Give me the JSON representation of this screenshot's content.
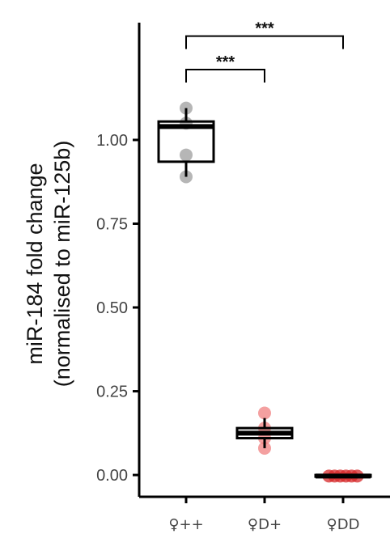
{
  "chart_data": {
    "type": "box",
    "ylabel_line1": "miR-184  fold  change",
    "ylabel_line2": "(normalised  to  miR-125b)",
    "yticks": [
      0.0,
      0.25,
      0.5,
      0.75,
      1.0
    ],
    "ytick_labels": [
      "0.00",
      "0.25",
      "0.50",
      "0.75",
      "1.00"
    ],
    "ylim": [
      -0.065,
      1.35
    ],
    "categories": [
      "♀++",
      "♀D+",
      "♀DD"
    ],
    "boxes": [
      {
        "q1": 0.935,
        "median": 1.04,
        "q3": 1.055,
        "whisker_low": 0.89,
        "whisker_high": 1.095
      },
      {
        "q1": 0.11,
        "median": 0.125,
        "q3": 0.14,
        "whisker_low": 0.08,
        "whisker_high": 0.17
      },
      {
        "q1": -0.005,
        "median": -0.003,
        "q3": 0.0,
        "whisker_low": -0.005,
        "whisker_high": 0.0
      }
    ],
    "points": [
      {
        "category": 0,
        "values": [
          1.095,
          1.05,
          0.955,
          0.89
        ]
      },
      {
        "category": 1,
        "values": [
          0.185,
          0.14,
          0.11,
          0.08
        ]
      },
      {
        "category": 2,
        "values": [
          -0.003,
          -0.003,
          -0.003,
          -0.003,
          -0.003,
          -0.003
        ]
      }
    ],
    "point_colors": [
      "#9e9e9e",
      "#f08080",
      "#d62728"
    ],
    "significance": [
      {
        "from": 0,
        "to": 1,
        "label": "***",
        "y": 1.21
      },
      {
        "from": 0,
        "to": 2,
        "label": "***",
        "y": 1.31
      }
    ],
    "grid": false
  }
}
